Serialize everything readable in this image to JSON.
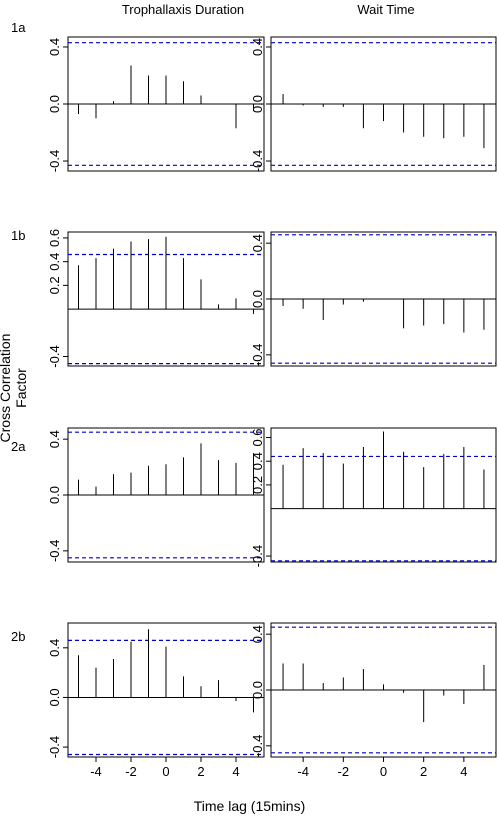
{
  "figure": {
    "col_titles": [
      "Trophallaxis Duration",
      "Wait Time"
    ],
    "ylabel": "Cross Correlation Factor",
    "xlabel": "Time lag (15mins)"
  },
  "style": {
    "bar_color": "#000000",
    "ci_color": "#0000cc"
  },
  "chart_data": [
    {
      "type": "bar",
      "row_label": "1a",
      "column": "Trophallaxis Duration",
      "x": [
        -5,
        -4,
        -3,
        -2,
        -1,
        0,
        1,
        2,
        3,
        4,
        5
      ],
      "values": [
        -0.07,
        -0.1,
        0.02,
        0.27,
        0.2,
        0.2,
        0.16,
        0.06,
        0.0,
        -0.17,
        -0.05
      ],
      "ci": 0.43,
      "ylim": [
        -0.47,
        0.47
      ],
      "yticks": [
        "-0.4",
        "0.0",
        "0.4"
      ],
      "xticks": [],
      "xlim": [
        -5.6,
        5.6
      ]
    },
    {
      "type": "bar",
      "row_label": "",
      "column": "Wait Time",
      "x": [
        -5,
        -4,
        -3,
        -2,
        -1,
        0,
        1,
        2,
        3,
        4,
        5
      ],
      "values": [
        0.07,
        -0.01,
        -0.02,
        -0.02,
        -0.17,
        -0.12,
        -0.2,
        -0.23,
        -0.24,
        -0.23,
        -0.31
      ],
      "ci": 0.43,
      "ylim": [
        -0.47,
        0.47
      ],
      "yticks": [
        "-0.4",
        "0.0",
        "0.4"
      ],
      "xticks": [],
      "xlim": [
        -5.6,
        5.6
      ]
    },
    {
      "type": "bar",
      "row_label": "1b",
      "column": "Trophallaxis Duration",
      "x": [
        -5,
        -4,
        -3,
        -2,
        -1,
        0,
        1,
        2,
        3,
        4,
        5
      ],
      "values": [
        0.37,
        0.43,
        0.51,
        0.57,
        0.59,
        0.61,
        0.43,
        0.25,
        0.04,
        0.09,
        -0.04
      ],
      "ci": 0.46,
      "ylim": [
        -0.48,
        0.65
      ],
      "yticks": [
        "-0.4",
        "0.2",
        "0.4",
        "0.6"
      ],
      "xticks": [],
      "xlim": [
        -5.6,
        5.6
      ]
    },
    {
      "type": "bar",
      "row_label": "",
      "column": "Wait Time",
      "x": [
        -5,
        -4,
        -3,
        -2,
        -1,
        0,
        1,
        2,
        3,
        4,
        5
      ],
      "values": [
        -0.05,
        -0.07,
        -0.15,
        -0.04,
        -0.02,
        0.0,
        -0.21,
        -0.19,
        -0.18,
        -0.24,
        -0.22
      ],
      "ci": 0.46,
      "ylim": [
        -0.48,
        0.48
      ],
      "yticks": [
        "-0.4",
        "0.0",
        "0.4"
      ],
      "xticks": [],
      "xlim": [
        -5.6,
        5.6
      ]
    },
    {
      "type": "bar",
      "row_label": "2a",
      "column": "Trophallaxis Duration",
      "x": [
        -5,
        -4,
        -3,
        -2,
        -1,
        0,
        1,
        2,
        3,
        4,
        5
      ],
      "values": [
        0.11,
        0.06,
        0.15,
        0.16,
        0.21,
        0.22,
        0.27,
        0.37,
        0.25,
        0.23,
        0.3
      ],
      "ci": 0.45,
      "ylim": [
        -0.48,
        0.48
      ],
      "yticks": [
        "-0.4",
        "0.0",
        "0.4"
      ],
      "xticks": [],
      "xlim": [
        -5.6,
        5.6
      ]
    },
    {
      "type": "bar",
      "row_label": "",
      "column": "Wait Time",
      "x": [
        -5,
        -4,
        -3,
        -2,
        -1,
        0,
        1,
        2,
        3,
        4,
        5
      ],
      "values": [
        0.37,
        0.51,
        0.47,
        0.38,
        0.52,
        0.65,
        0.48,
        0.35,
        0.46,
        0.52,
        0.33
      ],
      "ci": 0.44,
      "ylim": [
        -0.45,
        0.68
      ],
      "yticks": [
        "-0.4",
        "0.2",
        "0.4",
        "0.6"
      ],
      "xticks": [],
      "xlim": [
        -5.6,
        5.6
      ]
    },
    {
      "type": "bar",
      "row_label": "2b",
      "column": "Trophallaxis Duration",
      "x": [
        -5,
        -4,
        -3,
        -2,
        -1,
        0,
        1,
        2,
        3,
        4,
        5
      ],
      "values": [
        0.34,
        0.24,
        0.31,
        0.45,
        0.55,
        0.41,
        0.17,
        0.09,
        0.14,
        -0.03,
        -0.12
      ],
      "ci": 0.46,
      "ylim": [
        -0.48,
        0.6
      ],
      "yticks": [
        "-0.4",
        "0.0",
        "0.4"
      ],
      "xticks": [
        "-4",
        "-2",
        "0",
        "2",
        "4"
      ],
      "xlim": [
        -5.6,
        5.6
      ]
    },
    {
      "type": "bar",
      "row_label": "",
      "column": "Wait Time",
      "x": [
        -5,
        -4,
        -3,
        -2,
        -1,
        0,
        1,
        2,
        3,
        4,
        5
      ],
      "values": [
        0.19,
        0.19,
        0.05,
        0.09,
        0.15,
        0.04,
        -0.02,
        -0.23,
        -0.04,
        -0.1,
        0.18
      ],
      "ci": 0.45,
      "ylim": [
        -0.48,
        0.48
      ],
      "yticks": [
        "-0.4",
        "0.0",
        "0.4"
      ],
      "xticks": [
        "-4",
        "-2",
        "0",
        "2",
        "4"
      ],
      "xlim": [
        -5.6,
        5.6
      ]
    }
  ]
}
